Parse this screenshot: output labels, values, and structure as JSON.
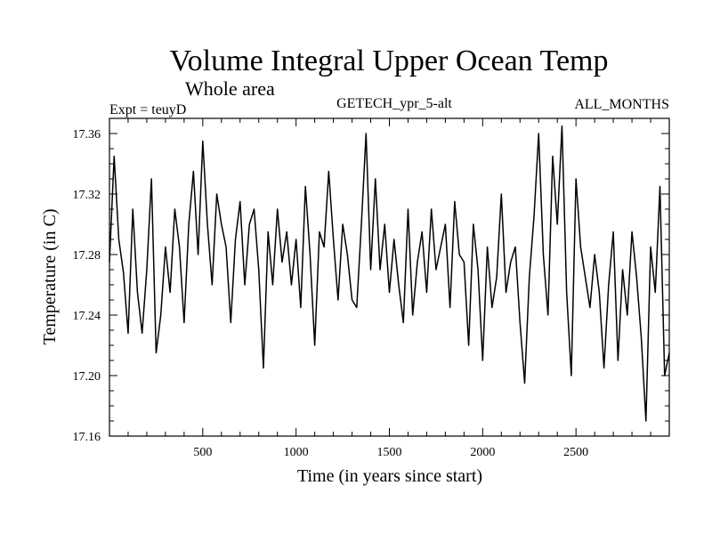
{
  "chart_data": {
    "type": "line",
    "title": "Volume Integral Upper Ocean Temp",
    "subtitle": "Whole area",
    "experiment": "Expt = teuyD",
    "dataset": "GETECH_ypr_5-alt",
    "period": "ALL_MONTHS",
    "xlabel": "Time (in years since start)",
    "ylabel": "Temperature (in C)",
    "xlim": [
      0,
      3000
    ],
    "ylim": [
      17.16,
      17.37
    ],
    "xticks": [
      500,
      1000,
      1500,
      2000,
      2500
    ],
    "xtick_labels": [
      "500",
      "1000",
      "1500",
      "2000",
      "2500"
    ],
    "yticks": [
      17.16,
      17.2,
      17.24,
      17.28,
      17.32,
      17.36
    ],
    "ytick_labels": [
      "17.16",
      "17.20",
      "17.24",
      "17.28",
      "17.32",
      "17.36"
    ],
    "grid": false,
    "series": [
      {
        "x": [
          0,
          25,
          50,
          75,
          100,
          125,
          150,
          175,
          200,
          225,
          250,
          275,
          300,
          325,
          350,
          375,
          400,
          425,
          450,
          475,
          500,
          525,
          550,
          575,
          600,
          625,
          650,
          675,
          700,
          725,
          750,
          775,
          800,
          825,
          850,
          875,
          900,
          925,
          950,
          975,
          1000,
          1025,
          1050,
          1075,
          1100,
          1125,
          1150,
          1175,
          1200,
          1225,
          1250,
          1275,
          1300,
          1325,
          1350,
          1375,
          1400,
          1425,
          1450,
          1475,
          1500,
          1525,
          1550,
          1575,
          1600,
          1625,
          1650,
          1675,
          1700,
          1725,
          1750,
          1775,
          1800,
          1825,
          1850,
          1875,
          1900,
          1925,
          1950,
          1975,
          2000,
          2025,
          2050,
          2075,
          2100,
          2125,
          2150,
          2175,
          2200,
          2225,
          2250,
          2275,
          2300,
          2325,
          2350,
          2375,
          2400,
          2425,
          2450,
          2475,
          2500,
          2525,
          2550,
          2575,
          2600,
          2625,
          2650,
          2675,
          2700,
          2725,
          2750,
          2775,
          2800,
          2825,
          2850,
          2875,
          2900,
          2925,
          2950,
          2975,
          3000
        ],
        "values": [
          17.275,
          17.345,
          17.29,
          17.268,
          17.228,
          17.31,
          17.255,
          17.228,
          17.27,
          17.33,
          17.215,
          17.24,
          17.285,
          17.255,
          17.31,
          17.285,
          17.235,
          17.3,
          17.335,
          17.28,
          17.355,
          17.3,
          17.26,
          17.32,
          17.3,
          17.285,
          17.235,
          17.29,
          17.315,
          17.26,
          17.3,
          17.31,
          17.27,
          17.205,
          17.295,
          17.26,
          17.31,
          17.275,
          17.295,
          17.26,
          17.29,
          17.245,
          17.325,
          17.28,
          17.22,
          17.295,
          17.285,
          17.335,
          17.29,
          17.25,
          17.3,
          17.28,
          17.25,
          17.245,
          17.3,
          17.36,
          17.27,
          17.33,
          17.27,
          17.3,
          17.255,
          17.29,
          17.26,
          17.235,
          17.31,
          17.24,
          17.275,
          17.295,
          17.255,
          17.31,
          17.27,
          17.285,
          17.3,
          17.245,
          17.315,
          17.28,
          17.275,
          17.22,
          17.3,
          17.27,
          17.21,
          17.285,
          17.245,
          17.265,
          17.32,
          17.255,
          17.275,
          17.285,
          17.235,
          17.195,
          17.265,
          17.305,
          17.36,
          17.28,
          17.24,
          17.345,
          17.3,
          17.365,
          17.255,
          17.2,
          17.33,
          17.285,
          17.265,
          17.245,
          17.28,
          17.255,
          17.205,
          17.26,
          17.295,
          17.21,
          17.27,
          17.24,
          17.295,
          17.265,
          17.225,
          17.17,
          17.285,
          17.255,
          17.325,
          17.2,
          17.215
        ]
      }
    ]
  }
}
